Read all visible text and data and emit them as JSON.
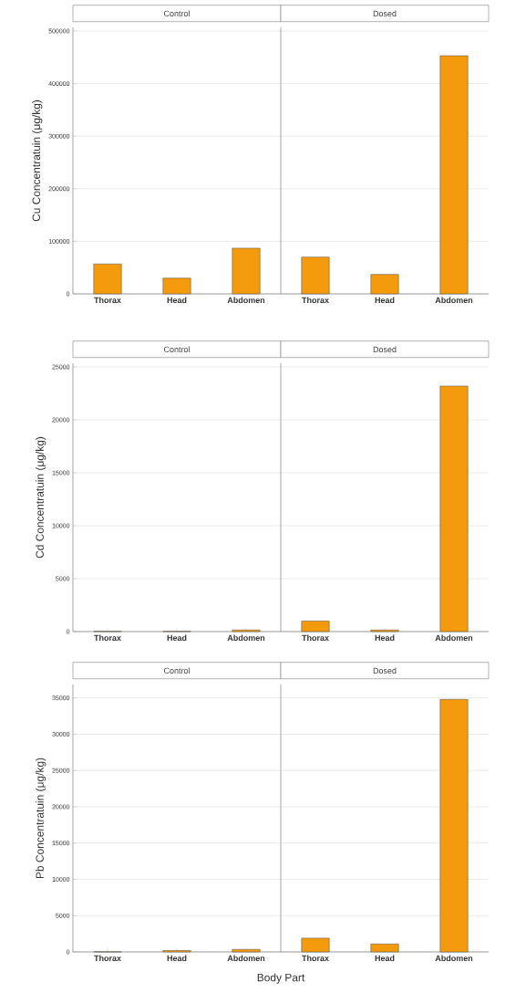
{
  "chart_data": [
    {
      "type": "bar",
      "title": "Control",
      "ylabel": "Cu Concentratuin (μg/kg)",
      "categories": [
        "Thorax",
        "Head",
        "Abdomen"
      ],
      "values": [
        57000,
        30000,
        87000
      ],
      "color": "#f39a0d",
      "ylim": [
        0,
        507000
      ],
      "yticks": [
        0,
        100000,
        200000,
        300000,
        400000,
        500000
      ],
      "grid": "y"
    },
    {
      "type": "bar",
      "title": "Dosed",
      "categories": [
        "Thorax",
        "Head",
        "Abdomen"
      ],
      "values": [
        70000,
        37000,
        453000
      ],
      "color": "#f39a0d",
      "ylim": [
        0,
        507000
      ],
      "yticks": [
        0,
        100000,
        200000,
        300000,
        400000,
        500000
      ],
      "grid": "y",
      "tick_labels": "x"
    },
    {
      "type": "bar",
      "title": "Control",
      "ylabel": "Cd Concentratuin (μg/kg)",
      "categories": [
        "Thorax",
        "Head",
        "Abdomen"
      ],
      "values": [
        20,
        20,
        150
      ],
      "color": "#f39a0d",
      "ylim": [
        0,
        25350
      ],
      "yticks": [
        0,
        5000,
        10000,
        15000,
        20000,
        25000
      ],
      "grid": "y"
    },
    {
      "type": "bar",
      "title": "Dosed",
      "categories": [
        "Thorax",
        "Head",
        "Abdomen"
      ],
      "values": [
        1000,
        150,
        23200
      ],
      "color": "#f39a0d",
      "ylim": [
        0,
        25350
      ],
      "yticks": [
        0,
        5000,
        10000,
        15000,
        20000,
        25000
      ],
      "grid": "y",
      "tick_labels": "x"
    },
    {
      "type": "bar",
      "title": "Control",
      "ylabel": "Pb Concentratuin (μg/kg)",
      "xlabel": "Body Part",
      "categories": [
        "Thorax",
        "Head",
        "Abdomen"
      ],
      "values": [
        20,
        200,
        350
      ],
      "color": "#f39a0d",
      "ylim": [
        0,
        36850
      ],
      "yticks": [
        0,
        5000,
        10000,
        15000,
        20000,
        25000,
        30000,
        35000
      ],
      "grid": "y"
    },
    {
      "type": "bar",
      "title": "Dosed",
      "categories": [
        "Thorax",
        "Head",
        "Abdomen"
      ],
      "values": [
        1900,
        1100,
        34800
      ],
      "color": "#f39a0d",
      "ylim": [
        0,
        36850
      ],
      "yticks": [
        0,
        5000,
        10000,
        15000,
        20000,
        25000,
        30000,
        35000
      ],
      "grid": "y",
      "tick_labels": "x"
    }
  ]
}
